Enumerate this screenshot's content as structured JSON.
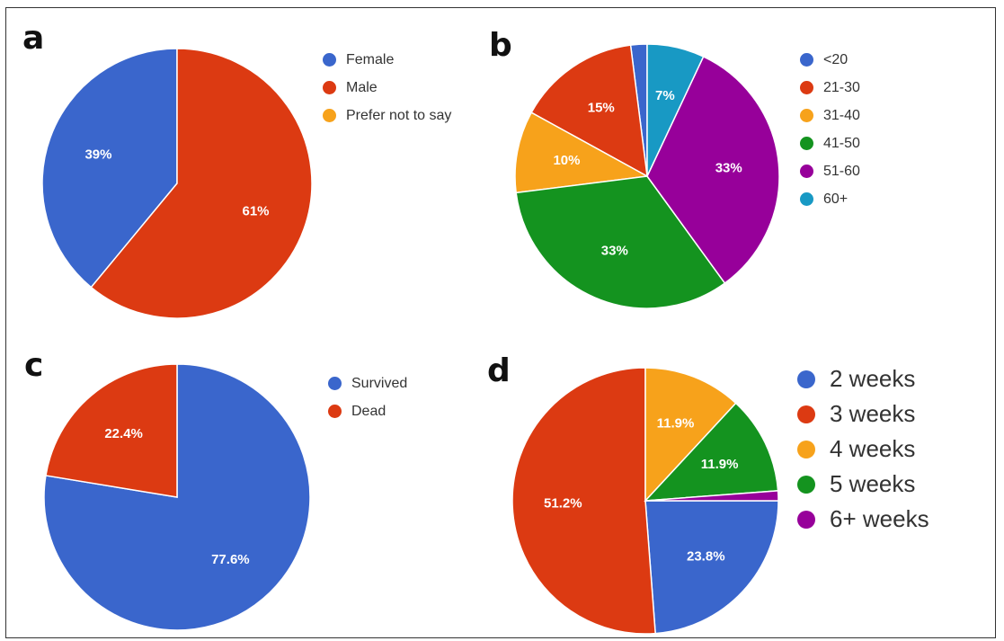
{
  "chart_data": [
    {
      "id": "a",
      "panel_label": "a",
      "type": "pie",
      "categories": [
        "Female",
        "Male",
        "Prefer not to say"
      ],
      "values": [
        39,
        61,
        0
      ],
      "data_labels": [
        "39%",
        "61%",
        ""
      ],
      "colors": [
        "#3a66cc",
        "#dc3a12",
        "#f7a21b"
      ],
      "legend": "right"
    },
    {
      "id": "b",
      "panel_label": "b",
      "type": "pie",
      "categories": [
        "<20",
        "21-30",
        "31-40",
        "41-50",
        "51-60",
        "60+"
      ],
      "values": [
        2,
        15,
        10,
        33,
        33,
        7
      ],
      "data_labels": [
        "",
        "15%",
        "10%",
        "33%",
        "33%",
        "7%"
      ],
      "colors": [
        "#3a66cc",
        "#dc3a12",
        "#f7a21b",
        "#14931f",
        "#97009a",
        "#1899c4"
      ],
      "legend": "right"
    },
    {
      "id": "c",
      "panel_label": "c",
      "type": "pie",
      "categories": [
        "Survived",
        "Dead"
      ],
      "values": [
        77.6,
        22.4
      ],
      "data_labels": [
        "77.6%",
        "22.4%"
      ],
      "colors": [
        "#3a66cc",
        "#dc3a12"
      ],
      "legend": "right"
    },
    {
      "id": "d",
      "panel_label": "d",
      "type": "pie",
      "categories": [
        "2 weeks",
        "3 weeks",
        "4 weeks",
        "5 weeks",
        "6+ weeks"
      ],
      "values": [
        23.8,
        51.2,
        11.9,
        11.9,
        1.2
      ],
      "data_labels": [
        "23.8%",
        "51.2%",
        "11.9%",
        "11.9%",
        ""
      ],
      "colors": [
        "#3a66cc",
        "#dc3a12",
        "#f7a21b",
        "#14931f",
        "#97009a"
      ],
      "legend": "right"
    }
  ]
}
